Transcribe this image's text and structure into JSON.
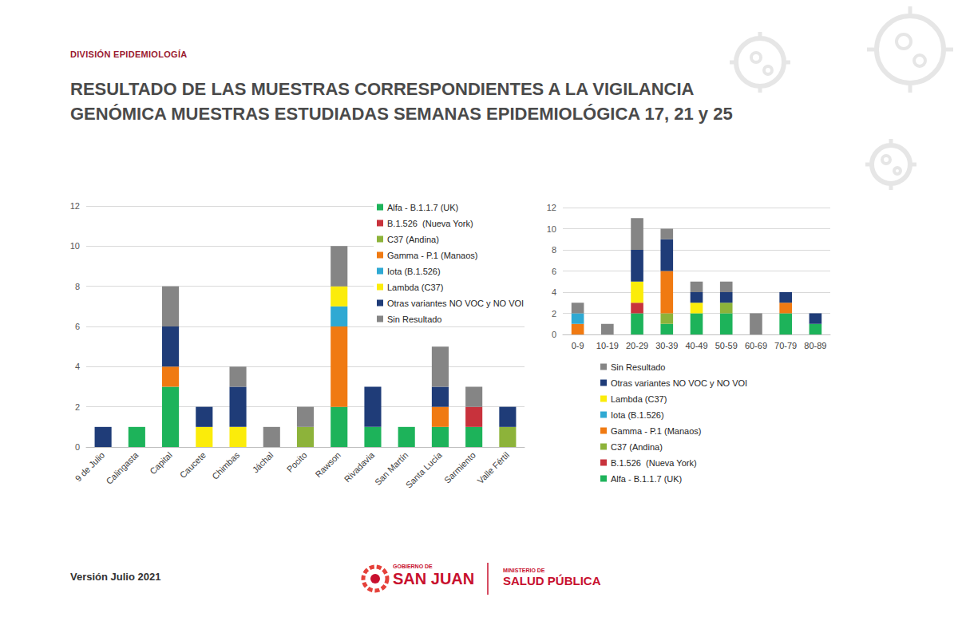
{
  "header": {
    "division": "DIVISIÓN EPIDEMIOLOGÍA",
    "title": [
      "RESULTADO DE LAS MUESTRAS CORRESPONDIENTES A LA VIGILANCIA",
      "GENÓMICA MUESTRAS ESTUDIADAS SEMANAS EPIDEMIOLÓGICA 17, 21 y 25"
    ]
  },
  "chart_data": [
    {
      "type": "bar",
      "stacked": true,
      "grid": true,
      "legend": "upper right",
      "categories": [
        "9 de Julio",
        "Calingasta",
        "Capital",
        "Caucete",
        "Chimbas",
        "Jáchal",
        "Pocito",
        "Rawson",
        "Rivadavia",
        "San Martín",
        "Santa Lucía",
        "Sarmiento",
        "Valle Fértil"
      ],
      "ylim": [
        0,
        12
      ],
      "yticks": [
        0,
        2,
        4,
        6,
        8,
        10,
        12
      ],
      "series": [
        {
          "name": "Alfa - B.1.1.7 (UK)",
          "color": "#1db35a",
          "values": [
            0,
            1,
            3,
            0,
            0,
            0,
            0,
            2,
            1,
            1,
            1,
            1,
            0
          ]
        },
        {
          "name": "B.1.526  (Nueva York)",
          "color": "#c8323c",
          "values": [
            0,
            0,
            0,
            0,
            0,
            0,
            0,
            0,
            0,
            0,
            0,
            1,
            0
          ]
        },
        {
          "name": "C37 (Andina)",
          "color": "#8db33a",
          "values": [
            0,
            0,
            0,
            0,
            0,
            0,
            1,
            0,
            0,
            0,
            0,
            0,
            1
          ]
        },
        {
          "name": "Gamma - P.1 (Manaos)",
          "color": "#f07a12",
          "values": [
            0,
            0,
            1,
            0,
            0,
            0,
            0,
            4,
            0,
            0,
            1,
            0,
            0
          ]
        },
        {
          "name": "Iota (B.1.526)",
          "color": "#2fa9d3",
          "values": [
            0,
            0,
            0,
            0,
            0,
            0,
            0,
            1,
            0,
            0,
            0,
            0,
            0
          ]
        },
        {
          "name": "Lambda (C37)",
          "color": "#fbec0a",
          "values": [
            0,
            0,
            0,
            1,
            1,
            0,
            0,
            1,
            0,
            0,
            0,
            0,
            0
          ]
        },
        {
          "name": "Otras variantes NO VOC y NO VOI",
          "color": "#1f3c78",
          "values": [
            1,
            0,
            2,
            1,
            2,
            0,
            0,
            0,
            2,
            0,
            1,
            0,
            1
          ]
        },
        {
          "name": "Sin Resultado",
          "color": "#858585",
          "values": [
            0,
            0,
            2,
            0,
            1,
            1,
            1,
            2,
            0,
            0,
            2,
            1,
            0
          ]
        }
      ]
    },
    {
      "type": "bar",
      "stacked": true,
      "grid": true,
      "legend": "bottom",
      "categories": [
        "0-9",
        "10-19",
        "20-29",
        "30-39",
        "40-49",
        "50-59",
        "60-69",
        "70-79",
        "80-89"
      ],
      "ylim": [
        0,
        12
      ],
      "yticks": [
        0,
        2,
        4,
        6,
        8,
        10,
        12
      ],
      "series": [
        {
          "name": "Alfa - B.1.1.7 (UK)",
          "color": "#1db35a",
          "values": [
            0,
            0,
            2,
            1,
            2,
            2,
            0,
            2,
            1
          ]
        },
        {
          "name": "B.1.526  (Nueva York)",
          "color": "#c8323c",
          "values": [
            0,
            0,
            1,
            0,
            0,
            0,
            0,
            0,
            0
          ]
        },
        {
          "name": "C37 (Andina)",
          "color": "#8db33a",
          "values": [
            0,
            0,
            0,
            1,
            0,
            1,
            0,
            0,
            0
          ]
        },
        {
          "name": "Gamma - P.1 (Manaos)",
          "color": "#f07a12",
          "values": [
            1,
            0,
            0,
            4,
            0,
            0,
            0,
            1,
            0
          ]
        },
        {
          "name": "Iota (B.1.526)",
          "color": "#2fa9d3",
          "values": [
            1,
            0,
            0,
            0,
            0,
            0,
            0,
            0,
            0
          ]
        },
        {
          "name": "Lambda (C37)",
          "color": "#fbec0a",
          "values": [
            0,
            0,
            2,
            0,
            1,
            0,
            0,
            0,
            0
          ]
        },
        {
          "name": "Otras variantes NO VOC y NO VOI",
          "color": "#1f3c78",
          "values": [
            0,
            0,
            3,
            3,
            1,
            1,
            0,
            1,
            1
          ]
        },
        {
          "name": "Sin Resultado",
          "color": "#858585",
          "values": [
            1,
            1,
            3,
            1,
            1,
            1,
            2,
            0,
            0
          ]
        }
      ]
    }
  ],
  "footer": {
    "version": "Versión Julio 2021",
    "logo": [
      "GOBIERNO DE",
      "SAN JUAN",
      "MINISTERIO DE",
      "SALUD PÚBLICA"
    ]
  }
}
